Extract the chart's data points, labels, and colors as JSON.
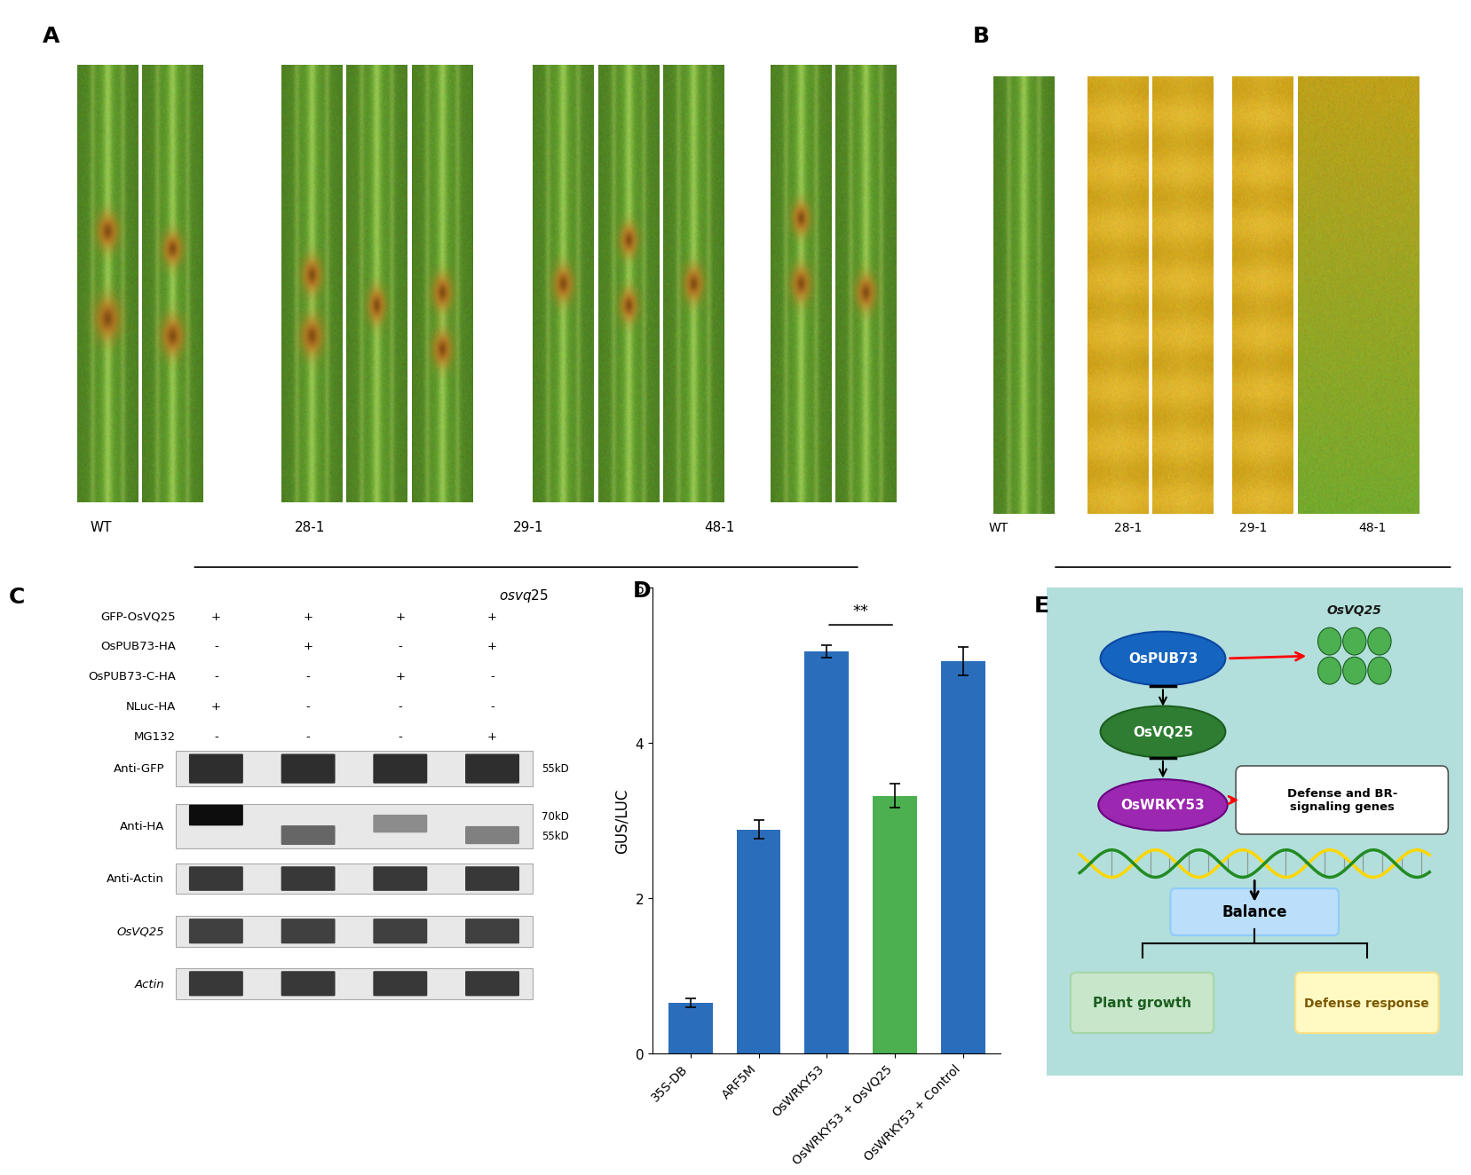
{
  "panel_labels": [
    "A",
    "B",
    "C",
    "D",
    "E"
  ],
  "bar_categories": [
    "35S-DB",
    "ARF5M",
    "OsWRKY53",
    "OsWRKY53 + OsVQ25",
    "OsWRKY53 + Control"
  ],
  "bar_values": [
    0.65,
    2.88,
    5.18,
    3.32,
    5.05
  ],
  "bar_errors": [
    0.06,
    0.12,
    0.08,
    0.15,
    0.18
  ],
  "bar_colors": [
    "#2a6ebb",
    "#2a6ebb",
    "#2a6ebb",
    "#4caf50",
    "#2a6ebb"
  ],
  "ylabel_D": "GUS/LUC",
  "ylim_D": [
    0,
    6
  ],
  "yticks_D": [
    0,
    2,
    4,
    6
  ],
  "bg_color": "#ffffff",
  "panel_label_fontsize": 18,
  "axis_label_fontsize": 12,
  "tick_fontsize": 11,
  "xticklabel_fontsize": 10,
  "blot_labels_C": [
    "GFP-OsVQ25",
    "OsPUB73-HA",
    "OsPUB73-C-HA",
    "NLuc-HA",
    "MG132"
  ],
  "blot_plus_minus_C": [
    [
      "+",
      "+",
      "+",
      "+"
    ],
    [
      "-",
      "+",
      "-",
      "+"
    ],
    [
      "-",
      "-",
      "+",
      "-"
    ],
    [
      "+",
      "-",
      "-",
      "-"
    ],
    [
      "-",
      "-",
      "-",
      "+"
    ]
  ],
  "ospub73_color": "#1565c0",
  "osvq25_ellipse_color": "#2e7d32",
  "oswrky53_color": "#9c27b0",
  "balance_box_color": "#bbdefb",
  "plant_growth_color": "#c8e6c9",
  "defense_response_color": "#fff9c4",
  "diagram_bg_color": "#b2dfdb",
  "osvq25_dots_color": "#4caf50",
  "leaf_green_dark": "#5a8a30",
  "leaf_green_mid": "#7ab040",
  "leaf_green_light": "#9cc855",
  "leaf_stripe_light": "#c8e090",
  "leaf_yellow": "#d4a820",
  "leaf_brown_spot": "#b86010",
  "leaf_orange_spot": "#d07820"
}
